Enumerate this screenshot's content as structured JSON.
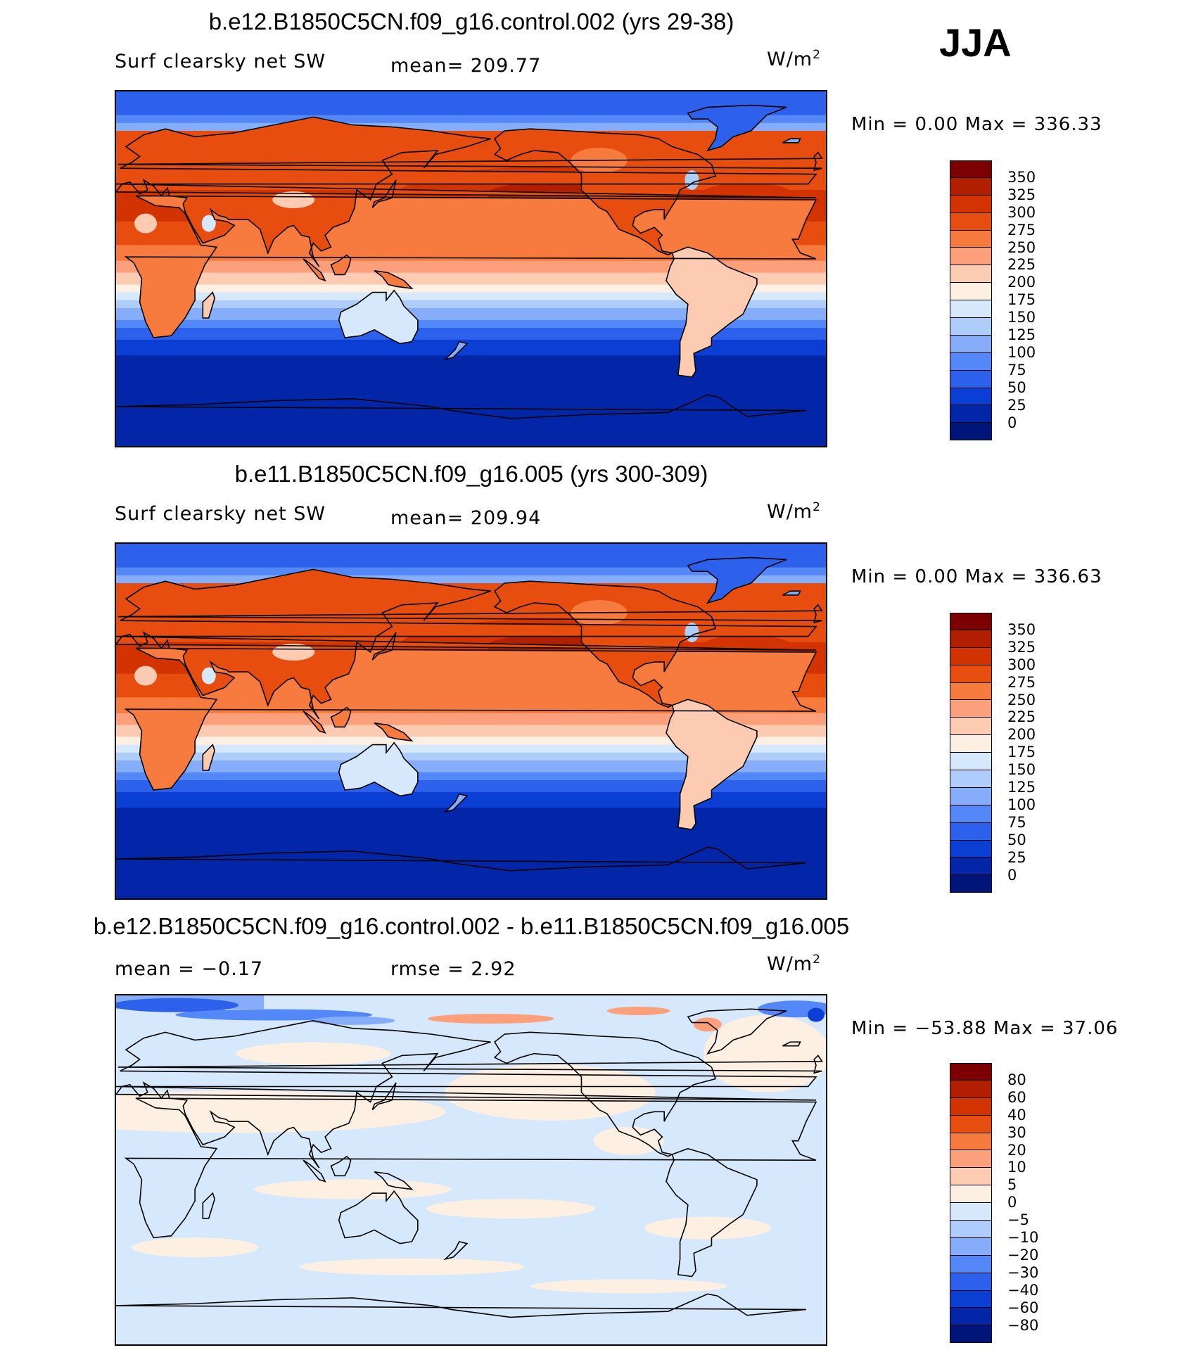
{
  "season": "JJA",
  "units": {
    "base": "W/m",
    "exp": "2"
  },
  "panels": [
    {
      "title": "b.e12.B1850C5CN.f09_g16.control.002 (yrs 29-38)",
      "field": "Surf clearsky net SW",
      "stat": "mean=  209.77",
      "minmax": "Min =     0.00  Max  =  336.33",
      "kind": "abs"
    },
    {
      "title": "b.e11.B1850C5CN.f09_g16.005 (yrs 300-309)",
      "field": "Surf clearsky net SW",
      "stat": "mean=  209.94",
      "minmax": "Min =     0.00  Max  =  336.63",
      "kind": "abs"
    },
    {
      "title": "b.e12.B1850C5CN.f09_g16.control.002 - b.e11.B1850C5CN.f09_g16.005",
      "field": "mean  =   −0.17",
      "stat": "rmse  =     2.92",
      "minmax": "Min  =  −53.88  Max  =    37.06",
      "kind": "diff"
    }
  ],
  "chart_data": [
    {
      "type": "heatmap",
      "title": "b.e12.B1850C5CN.f09_g16.control.002 (yrs 29-38)",
      "variable": "Surf clearsky net SW",
      "units": "W/m2",
      "season": "JJA",
      "mean": 209.77,
      "min": 0.0,
      "max": 336.33,
      "colorbar_levels": [
        350,
        325,
        300,
        275,
        250,
        225,
        200,
        175,
        150,
        125,
        100,
        75,
        50,
        25,
        0
      ],
      "colorbar_tick_labels": [
        "350",
        "325",
        "300",
        "275",
        "250",
        "225",
        "200",
        "175",
        "150",
        "125",
        "100",
        "75",
        "50",
        "25",
        "0"
      ],
      "colorbar_colors": [
        "#7d0000",
        "#b21f00",
        "#d23300",
        "#e84d10",
        "#f77a3e",
        "#fba07a",
        "#fdcbb2",
        "#fdf0e3",
        "#d6e8fb",
        "#afcdfb",
        "#86adfa",
        "#5488f8",
        "#2d61ec",
        "#0b3fd4",
        "#0326a8",
        "#00157a"
      ]
    },
    {
      "type": "heatmap",
      "title": "b.e11.B1850C5CN.f09_g16.005 (yrs 300-309)",
      "variable": "Surf clearsky net SW",
      "units": "W/m2",
      "season": "JJA",
      "mean": 209.94,
      "min": 0.0,
      "max": 336.63,
      "colorbar_levels": [
        350,
        325,
        300,
        275,
        250,
        225,
        200,
        175,
        150,
        125,
        100,
        75,
        50,
        25,
        0
      ],
      "colorbar_tick_labels": [
        "350",
        "325",
        "300",
        "275",
        "250",
        "225",
        "200",
        "175",
        "150",
        "125",
        "100",
        "75",
        "50",
        "25",
        "0"
      ],
      "colorbar_colors": [
        "#7d0000",
        "#b21f00",
        "#d23300",
        "#e84d10",
        "#f77a3e",
        "#fba07a",
        "#fdcbb2",
        "#fdf0e3",
        "#d6e8fb",
        "#afcdfb",
        "#86adfa",
        "#5488f8",
        "#2d61ec",
        "#0b3fd4",
        "#0326a8",
        "#00157a"
      ]
    },
    {
      "type": "heatmap",
      "title": "b.e12.B1850C5CN.f09_g16.control.002 - b.e11.B1850C5CN.f09_g16.005",
      "variable": "difference",
      "units": "W/m2",
      "mean": -0.17,
      "rmse": 2.92,
      "min": -53.88,
      "max": 37.06,
      "colorbar_levels": [
        80,
        60,
        40,
        30,
        20,
        10,
        5,
        0,
        -5,
        -10,
        -20,
        -30,
        -40,
        -60,
        -80
      ],
      "colorbar_tick_labels": [
        "80",
        "60",
        "40",
        "30",
        "20",
        "10",
        "5",
        "0",
        "−5",
        "−10",
        "−20",
        "−30",
        "−40",
        "−60",
        "−80"
      ],
      "colorbar_colors": [
        "#7d0000",
        "#b21f00",
        "#d23300",
        "#e84d10",
        "#f77a3e",
        "#fba07a",
        "#fdcbb2",
        "#fdf0e3",
        "#d6e8fb",
        "#afcdfb",
        "#86adfa",
        "#5488f8",
        "#2d61ec",
        "#0b3fd4",
        "#0326a8",
        "#00157a"
      ]
    }
  ]
}
